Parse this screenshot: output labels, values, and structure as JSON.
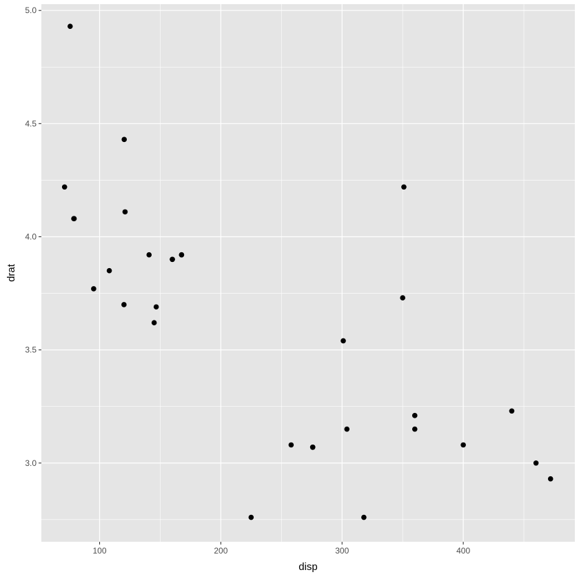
{
  "chart_data": {
    "type": "scatter",
    "title": "",
    "xlabel": "disp",
    "ylabel": "drat",
    "xlim": [
      51.95,
      492.05
    ],
    "ylim": [
      2.652,
      5.028
    ],
    "x_ticks": [
      100,
      200,
      300,
      400
    ],
    "x_tick_labels": [
      "100",
      "200",
      "300",
      "400"
    ],
    "y_ticks": [
      3.0,
      3.5,
      4.0,
      4.5,
      5.0
    ],
    "y_tick_labels": [
      "3.0",
      "3.5",
      "4.0",
      "4.5",
      "5.0"
    ],
    "x_minor_ticks": [
      50,
      150,
      250,
      350,
      450
    ],
    "y_minor_ticks": [
      2.75,
      3.25,
      3.75,
      4.25,
      4.75
    ],
    "grid": true,
    "colors": {
      "panel": "#e5e5e5",
      "grid": "#ffffff",
      "point": "#000000"
    },
    "points": [
      {
        "x": 160,
        "y": 3.9
      },
      {
        "x": 160,
        "y": 3.9
      },
      {
        "x": 108,
        "y": 3.85
      },
      {
        "x": 258,
        "y": 3.08
      },
      {
        "x": 360,
        "y": 3.15
      },
      {
        "x": 225,
        "y": 2.76
      },
      {
        "x": 360,
        "y": 3.21
      },
      {
        "x": 146.7,
        "y": 3.69
      },
      {
        "x": 140.8,
        "y": 3.92
      },
      {
        "x": 167.6,
        "y": 3.92
      },
      {
        "x": 167.6,
        "y": 3.92
      },
      {
        "x": 275.8,
        "y": 3.07
      },
      {
        "x": 275.8,
        "y": 3.07
      },
      {
        "x": 275.8,
        "y": 3.07
      },
      {
        "x": 472,
        "y": 2.93
      },
      {
        "x": 460,
        "y": 3.0
      },
      {
        "x": 440,
        "y": 3.23
      },
      {
        "x": 78.7,
        "y": 4.08
      },
      {
        "x": 75.7,
        "y": 4.93
      },
      {
        "x": 71.1,
        "y": 4.22
      },
      {
        "x": 120.1,
        "y": 3.7
      },
      {
        "x": 318,
        "y": 2.76
      },
      {
        "x": 304,
        "y": 3.15
      },
      {
        "x": 350,
        "y": 3.73
      },
      {
        "x": 400,
        "y": 3.08
      },
      {
        "x": 79,
        "y": 4.08
      },
      {
        "x": 120.3,
        "y": 4.43
      },
      {
        "x": 95.1,
        "y": 3.77
      },
      {
        "x": 351,
        "y": 4.22
      },
      {
        "x": 145,
        "y": 3.62
      },
      {
        "x": 301,
        "y": 3.54
      },
      {
        "x": 121,
        "y": 4.11
      }
    ]
  }
}
